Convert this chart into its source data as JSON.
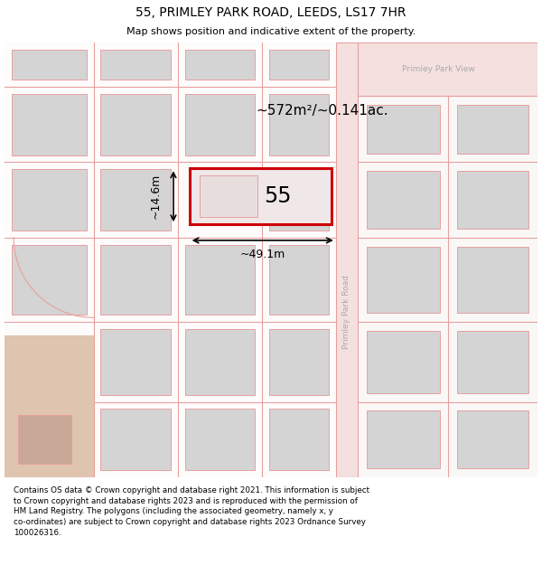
{
  "title": "55, PRIMLEY PARK ROAD, LEEDS, LS17 7HR",
  "subtitle": "Map shows position and indicative extent of the property.",
  "footer": "Contains OS data © Crown copyright and database right 2021. This information is subject\nto Crown copyright and database rights 2023 and is reproduced with the permission of\nHM Land Registry. The polygons (including the associated geometry, namely x, y\nco-ordinates) are subject to Crown copyright and database rights 2023 Ordnance Survey\n100026316.",
  "map_bg": "#ffffff",
  "road_color": "#e8a0a0",
  "road_fill": "#f5e0e0",
  "building_fill": "#d4d4d4",
  "highlight_fill": "#f0e8e8",
  "highlight_edge": "#cc0000",
  "highlight_lw": 2.2,
  "road_label_color": "#aaaaaa",
  "area_text": "~572m²/~0.141ac.",
  "width_text": "~49.1m",
  "height_text": "~14.6m",
  "number_text": "55",
  "road_name_right": "Primley Park Road",
  "road_name_topleft": "Primley Park View",
  "bottom_left_fill": "#dfc4b0"
}
